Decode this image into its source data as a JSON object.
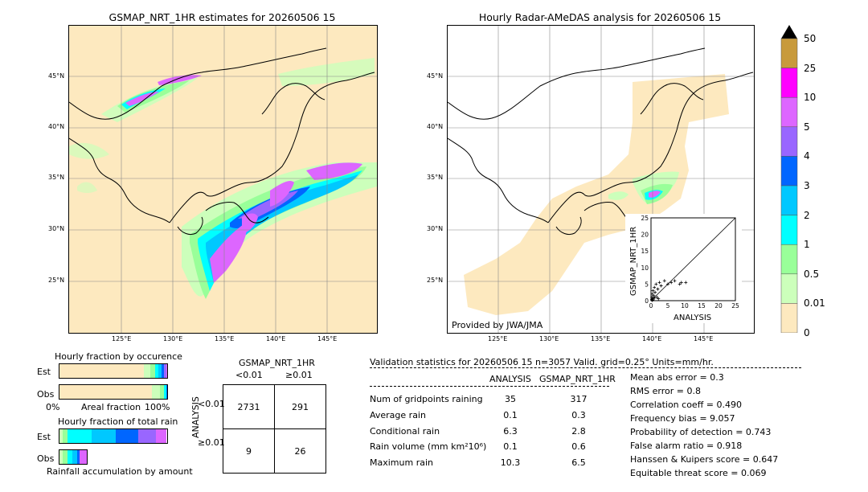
{
  "left_map": {
    "title": "GSMAP_NRT_1HR estimates for 20260506 15",
    "lat_labels": [
      "45°N",
      "40°N",
      "35°N",
      "30°N",
      "25°N"
    ],
    "lon_labels": [
      "125°E",
      "130°E",
      "135°E",
      "140°E",
      "145°E"
    ]
  },
  "right_map": {
    "title": "Hourly Radar-AMeDAS analysis for 20260506 15",
    "lat_labels": [
      "45°N",
      "40°N",
      "35°N",
      "30°N",
      "25°N"
    ],
    "lon_labels": [
      "125°E",
      "130°E",
      "135°E",
      "140°E",
      "145°E"
    ],
    "credit": "Provided by JWA/JMA"
  },
  "colorbar": {
    "labels": [
      "50",
      "25",
      "10",
      "5",
      "4",
      "3",
      "2",
      "1",
      "0.5",
      "0.01",
      "0"
    ],
    "colors": [
      "#c89a3c",
      "#ff00ff",
      "#dd66ff",
      "#9966ff",
      "#0066ff",
      "#00c8ff",
      "#00ffff",
      "#99ff99",
      "#ccffbb",
      "#fde9bf"
    ]
  },
  "occurrence": {
    "title": "Hourly fraction by occurence",
    "est_label": "Est",
    "obs_label": "Obs",
    "axis_left": "0%",
    "axis_mid": "Areal fraction",
    "axis_right": "100%"
  },
  "total_rain": {
    "title": "Hourly fraction of total rain",
    "est_label": "Est",
    "obs_label": "Obs",
    "footer": "Rainfall accumulation by amount"
  },
  "contingency": {
    "col_title": "GSMAP_NRT_1HR",
    "col_lt": "<0.01",
    "col_ge": "≥0.01",
    "row_title": "ANALYSIS",
    "row_lt": "<0.01",
    "row_ge": "≥0.01",
    "cells": [
      [
        "2731",
        "291"
      ],
      [
        "9",
        "26"
      ]
    ]
  },
  "validation": {
    "header": "Validation statistics for 20260506 15  n=3057 Valid. grid=0.25° Units=mm/hr.",
    "col_analysis": "ANALYSIS",
    "col_gsmap": "GSMAP_NRT_1HR",
    "rows": [
      {
        "label": "Num of gridpoints raining",
        "analysis": "35",
        "gsmap": "317"
      },
      {
        "label": "Average rain",
        "analysis": "0.1",
        "gsmap": "0.3"
      },
      {
        "label": "Conditional rain",
        "analysis": "6.3",
        "gsmap": "2.8"
      },
      {
        "label": "Rain volume (mm km²10⁶)",
        "analysis": "0.1",
        "gsmap": "0.6"
      },
      {
        "label": "Maximum rain",
        "analysis": "10.3",
        "gsmap": "6.5"
      }
    ],
    "scores": [
      "Mean abs error =    0.3",
      "RMS error =    0.8",
      "Correlation coeff =  0.490",
      "Frequency bias =  9.057",
      "Probability of detection =  0.743",
      "False alarm ratio =  0.918",
      "Hanssen & Kuipers score =  0.647",
      "Equitable threat score =  0.069"
    ]
  },
  "chart_data": {
    "type": "scatter",
    "xlabel": "ANALYSIS",
    "ylabel": "GSMAP_NRT_1HR",
    "xlim": [
      0,
      25
    ],
    "ylim": [
      0,
      25
    ],
    "ticks": [
      "0",
      "5",
      "10",
      "15",
      "20",
      "25"
    ],
    "points": [
      [
        0.2,
        0.3
      ],
      [
        0.3,
        1.0
      ],
      [
        0.4,
        2.0
      ],
      [
        0.5,
        0.5
      ],
      [
        0.6,
        3.0
      ],
      [
        0.8,
        1.5
      ],
      [
        1.0,
        4.0
      ],
      [
        1.2,
        2.5
      ],
      [
        1.5,
        5.0
      ],
      [
        1.8,
        1.0
      ],
      [
        2.0,
        3.5
      ],
      [
        2.5,
        5.5
      ],
      [
        3.0,
        4.5
      ],
      [
        4.0,
        6.0
      ],
      [
        5.0,
        5.0
      ],
      [
        6.0,
        5.5
      ],
      [
        7.0,
        6.0
      ],
      [
        8.5,
        5.0
      ],
      [
        9.0,
        5.5
      ],
      [
        10.3,
        5.5
      ],
      [
        0.3,
        0.1
      ],
      [
        0.5,
        0.2
      ],
      [
        1.0,
        0.8
      ],
      [
        2.2,
        0.6
      ]
    ]
  }
}
